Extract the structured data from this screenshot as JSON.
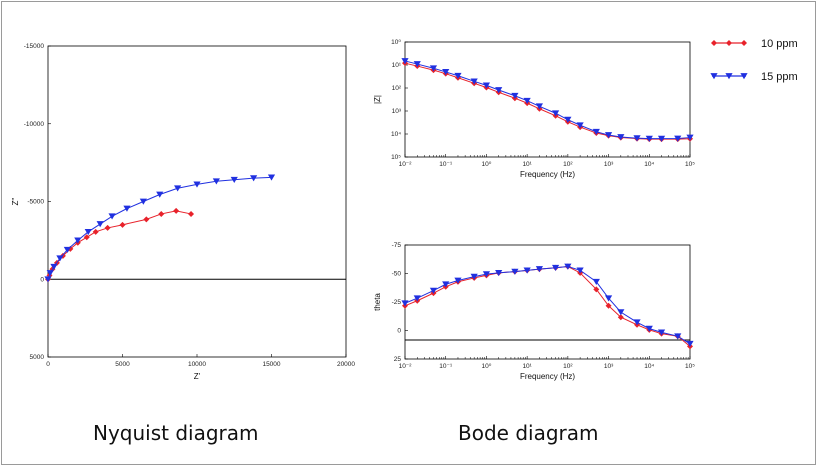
{
  "captions": {
    "nyquist": "Nyquist diagram",
    "bode": "Bode diagram"
  },
  "legend": [
    {
      "name": "10 ppm",
      "color": "#e8222b",
      "marker": "diamond"
    },
    {
      "name": "15 ppm",
      "color": "#2030e0",
      "marker": "triangle-down"
    }
  ],
  "chart_data": [
    {
      "id": "nyquist",
      "type": "scatter",
      "xlabel": "Z'",
      "ylabel": "Z''",
      "xlim": [
        0,
        20000
      ],
      "ylim": [
        5000,
        -15000
      ],
      "x_ticks": [
        "0",
        "5000",
        "10000",
        "15000",
        "20000"
      ],
      "y_ticks": [
        "-15000",
        "-10000",
        "-5000",
        "0",
        "5000"
      ],
      "series": [
        {
          "name": "10 ppm",
          "x": [
            0,
            100,
            300,
            600,
            1000,
            1500,
            2000,
            2600,
            3200,
            4000,
            5000,
            6600,
            7600,
            8600,
            9600
          ],
          "y": [
            0,
            -250,
            -650,
            -1050,
            -1500,
            -1950,
            -2350,
            -2700,
            -3050,
            -3300,
            -3500,
            -3850,
            -4200,
            -4400,
            -4200
          ]
        },
        {
          "name": "15 ppm",
          "x": [
            0,
            150,
            400,
            800,
            1300,
            2000,
            2700,
            3500,
            4300,
            5300,
            6400,
            7500,
            8700,
            10000,
            11300,
            12500,
            13800,
            15000
          ],
          "y": [
            0,
            -400,
            -800,
            -1350,
            -1900,
            -2500,
            -3050,
            -3550,
            -4050,
            -4550,
            -5000,
            -5450,
            -5850,
            -6100,
            -6300,
            -6400,
            -6500,
            -6550
          ]
        }
      ],
      "zero_line": true
    },
    {
      "id": "bode-magnitude",
      "type": "line",
      "xlabel": "Frequency (Hz)",
      "ylabel": "|Z|",
      "x_scale": "log",
      "y_scale": "log",
      "xlim": [
        0.01,
        100000
      ],
      "ylim": [
        1,
        100000
      ],
      "x_ticks": [
        "10⁻²",
        "10⁻¹",
        "10⁰",
        "10¹",
        "10²",
        "10³",
        "10⁴",
        "10⁵"
      ],
      "y_ticks": [
        "10⁰",
        "10¹",
        "10²",
        "10³",
        "10⁴",
        "10⁵"
      ],
      "series": [
        {
          "name": "10 ppm",
          "x": [
            0.01,
            0.02,
            0.05,
            0.1,
            0.2,
            0.5,
            1,
            2,
            5,
            10,
            20,
            50,
            100,
            200,
            500,
            1000,
            2000,
            5000,
            10000,
            20000,
            50000,
            100000
          ],
          "y": [
            12000,
            9000,
            6000,
            4200,
            2800,
            1600,
            1050,
            650,
            360,
            220,
            125,
            62,
            34,
            20,
            11,
            8.5,
            7,
            6.3,
            6,
            6,
            6,
            6.2
          ]
        },
        {
          "name": "15 ppm",
          "x": [
            0.01,
            0.02,
            0.05,
            0.1,
            0.2,
            0.5,
            1,
            2,
            5,
            10,
            20,
            50,
            100,
            200,
            500,
            1000,
            2000,
            5000,
            10000,
            20000,
            50000,
            100000
          ],
          "y": [
            15000,
            11000,
            7200,
            5000,
            3400,
            1950,
            1300,
            820,
            460,
            280,
            160,
            80,
            42,
            24,
            12.5,
            9,
            7.4,
            6.6,
            6.3,
            6.3,
            6.4,
            7
          ]
        }
      ]
    },
    {
      "id": "bode-phase",
      "type": "line",
      "xlabel": "Frequency (Hz)",
      "ylabel": "theta",
      "x_scale": "log",
      "xlim": [
        0.01,
        100000
      ],
      "ylim": [
        15,
        -75
      ],
      "x_ticks": [
        "10⁻²",
        "10⁻¹",
        "10⁰",
        "10¹",
        "10²",
        "10³",
        "10⁴",
        "10⁵"
      ],
      "y_ticks": [
        "-75",
        "-50",
        "-25",
        "0",
        "25"
      ],
      "series": [
        {
          "name": "10 ppm",
          "x": [
            0.01,
            0.02,
            0.05,
            0.1,
            0.2,
            0.5,
            1,
            2,
            5,
            10,
            20,
            50,
            100,
            200,
            500,
            1000,
            2000,
            5000,
            10000,
            20000,
            50000,
            100000
          ],
          "y": [
            -27,
            -31,
            -37,
            -42,
            -46,
            -49,
            -51,
            -53,
            -54,
            -55,
            -56,
            -57,
            -58,
            -53,
            -40,
            -27,
            -18,
            -12,
            -8,
            -5,
            -3,
            5
          ]
        },
        {
          "name": "15 ppm",
          "x": [
            0.01,
            0.02,
            0.05,
            0.1,
            0.2,
            0.5,
            1,
            2,
            5,
            10,
            20,
            50,
            100,
            200,
            500,
            1000,
            2000,
            5000,
            10000,
            20000,
            50000,
            100000
          ],
          "y": [
            -29,
            -33,
            -39,
            -44,
            -47,
            -50,
            -52,
            -53,
            -54,
            -55,
            -56,
            -57,
            -58,
            -55,
            -46,
            -33,
            -22,
            -14,
            -9,
            -6,
            -3,
            3
          ]
        }
      ],
      "zero_line": true
    }
  ]
}
